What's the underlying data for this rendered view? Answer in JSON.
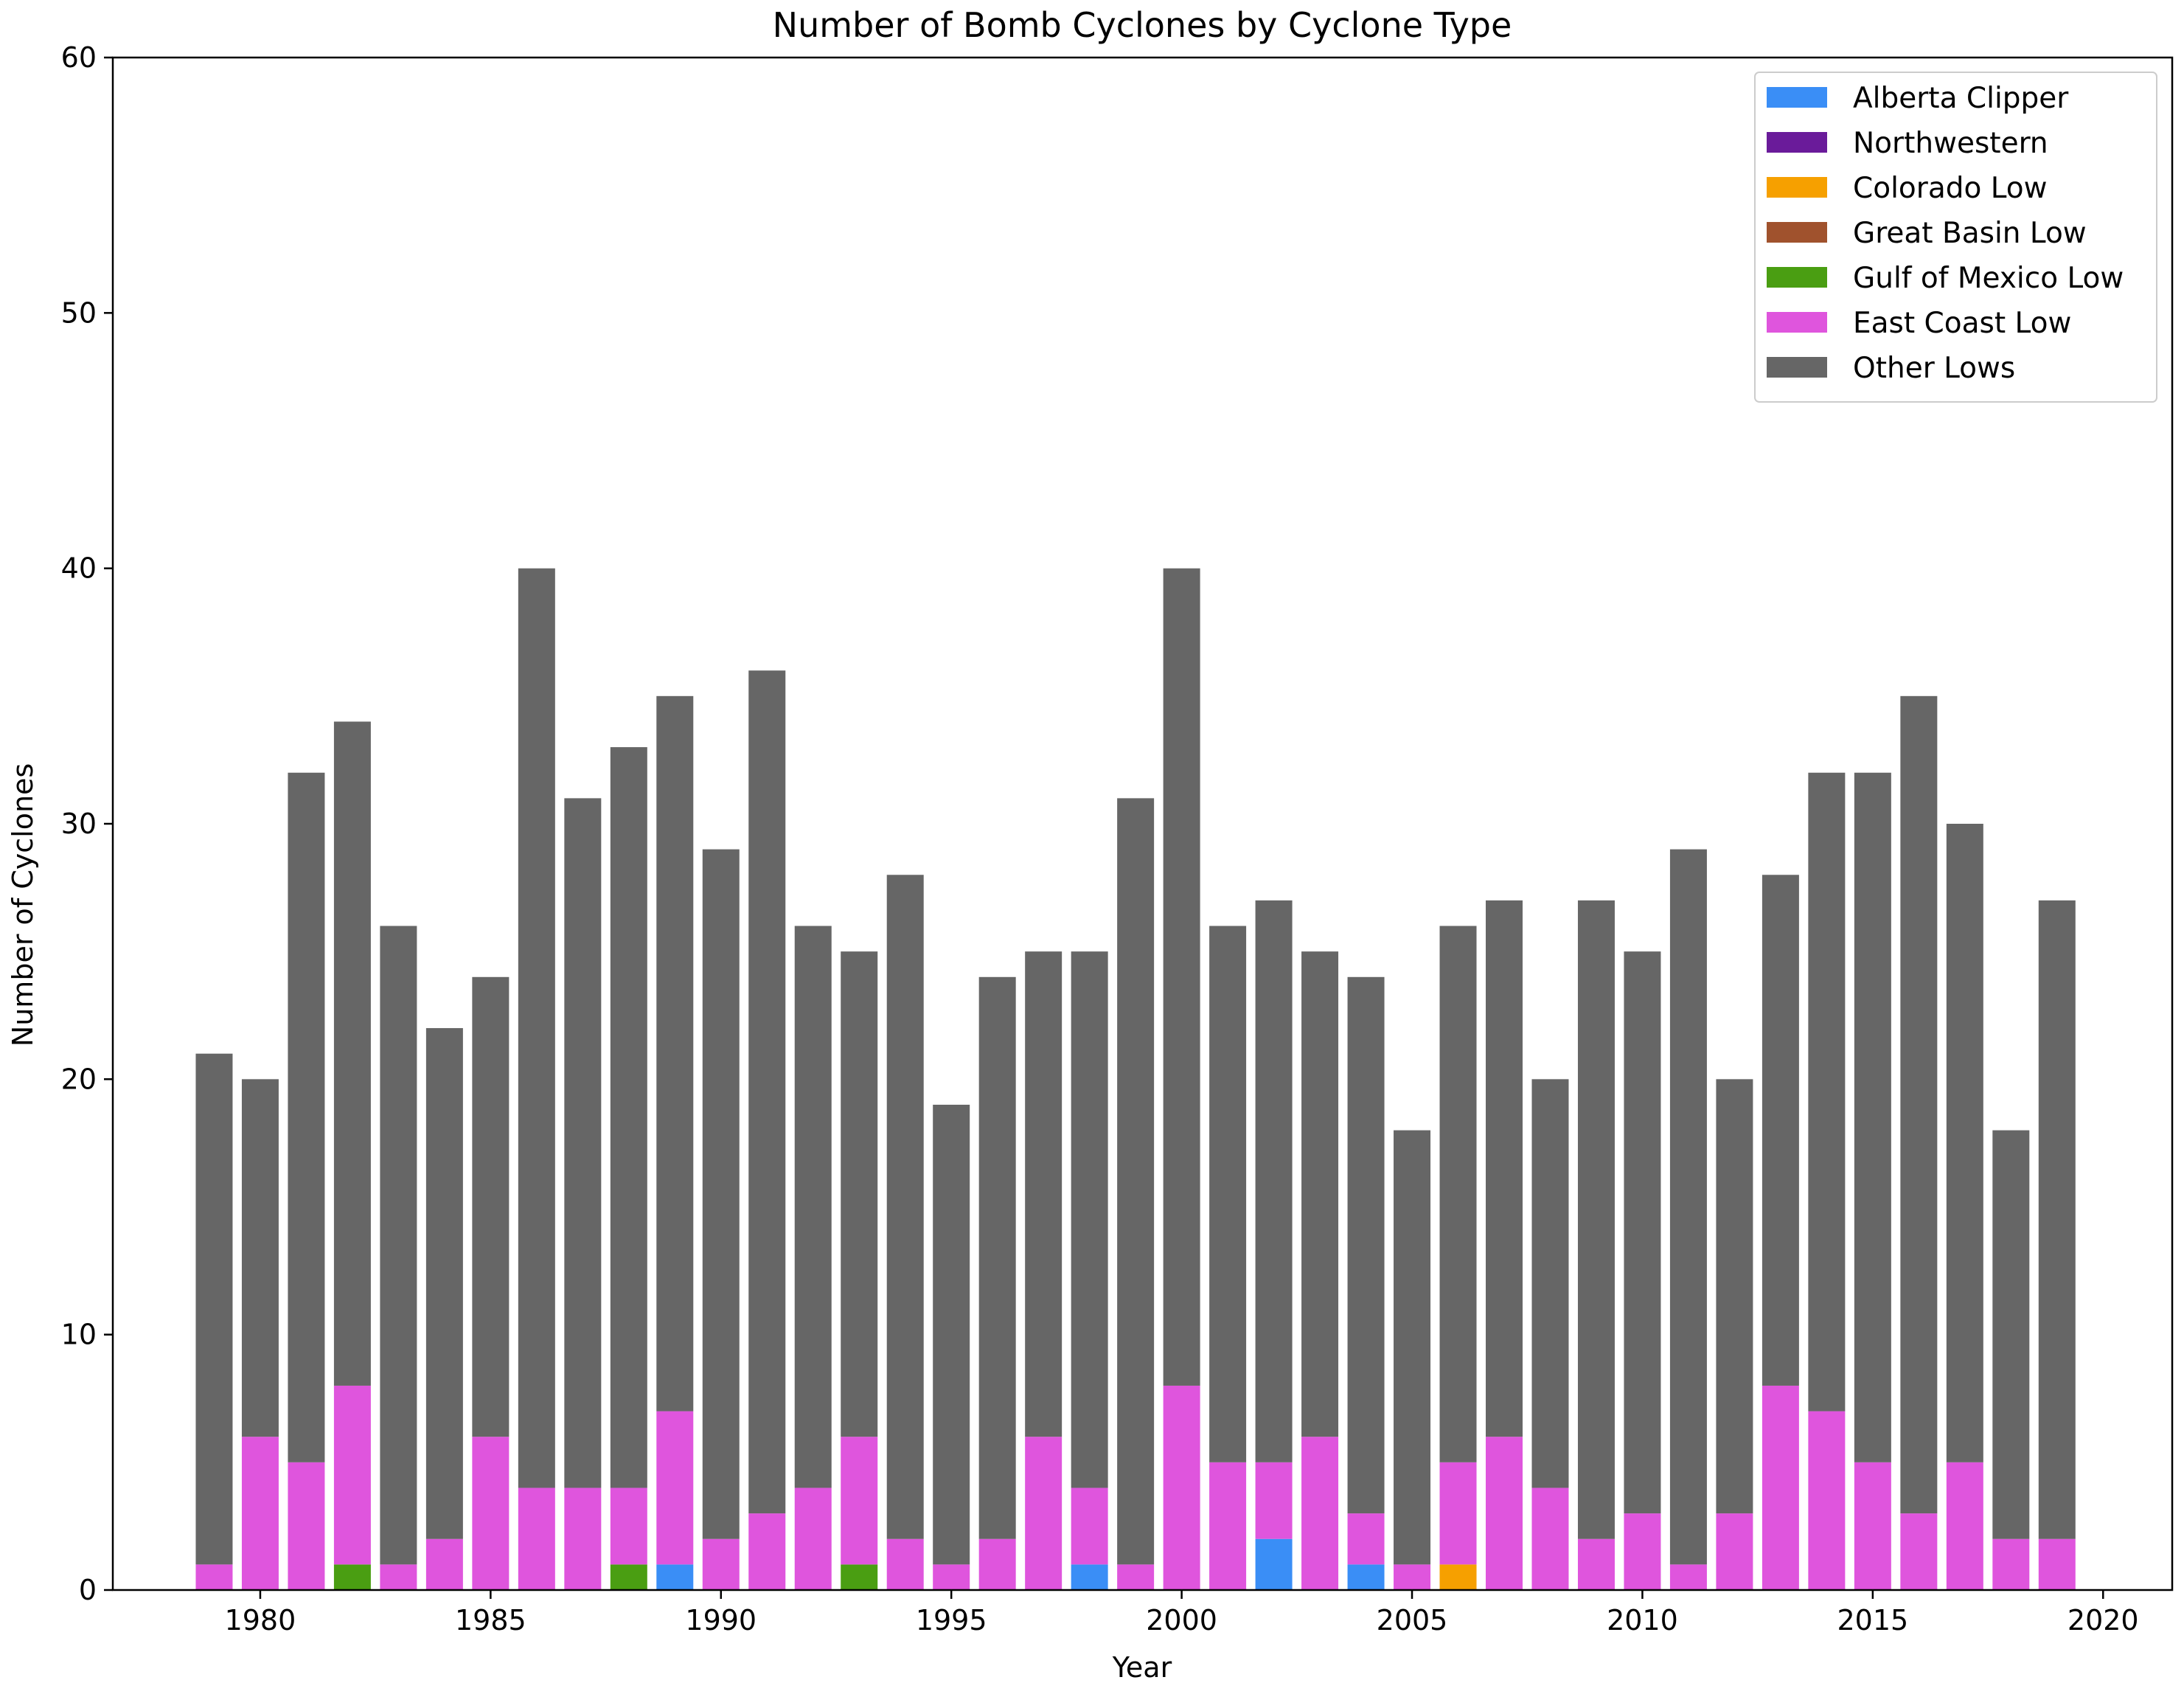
{
  "chart_data": {
    "type": "bar",
    "stacked": true,
    "title": "Number of Bomb Cyclones by Cyclone Type",
    "xlabel": "Year",
    "ylabel": "Number of Cyclones",
    "xlim": [
      1976.8,
      2021.5
    ],
    "ylim": [
      0,
      60
    ],
    "xticks": [
      1980,
      1985,
      1990,
      1995,
      2000,
      2005,
      2010,
      2015,
      2020
    ],
    "yticks": [
      0,
      10,
      20,
      30,
      40,
      50,
      60
    ],
    "grid": false,
    "legend_position": "top-right",
    "x": [
      1979,
      1980,
      1981,
      1982,
      1983,
      1984,
      1985,
      1986,
      1987,
      1988,
      1989,
      1990,
      1991,
      1992,
      1993,
      1994,
      1995,
      1996,
      1997,
      1998,
      1999,
      2000,
      2001,
      2002,
      2003,
      2004,
      2005,
      2006,
      2007,
      2008,
      2009,
      2010,
      2011,
      2012,
      2013,
      2014,
      2015,
      2016,
      2017,
      2018,
      2019
    ],
    "series": [
      {
        "name": "Alberta Clipper",
        "color": "#3a8ef6",
        "values": [
          0,
          0,
          0,
          0,
          0,
          0,
          0,
          0,
          0,
          0,
          1,
          0,
          0,
          0,
          0,
          0,
          0,
          0,
          0,
          1,
          0,
          0,
          0,
          2,
          0,
          1,
          0,
          0,
          0,
          0,
          0,
          0,
          0,
          0,
          0,
          0,
          0,
          0,
          0,
          0,
          0
        ]
      },
      {
        "name": "Northwestern",
        "color": "#6a1b9a",
        "values": [
          0,
          0,
          0,
          0,
          0,
          0,
          0,
          0,
          0,
          0,
          0,
          0,
          0,
          0,
          0,
          0,
          0,
          0,
          0,
          0,
          0,
          0,
          0,
          0,
          0,
          0,
          0,
          0,
          0,
          0,
          0,
          0,
          0,
          0,
          0,
          0,
          0,
          0,
          0,
          0,
          0
        ]
      },
      {
        "name": "Colorado Low",
        "color": "#f6a000",
        "values": [
          0,
          0,
          0,
          0,
          0,
          0,
          0,
          0,
          0,
          0,
          0,
          0,
          0,
          0,
          0,
          0,
          0,
          0,
          0,
          0,
          0,
          0,
          0,
          0,
          0,
          0,
          0,
          1,
          0,
          0,
          0,
          0,
          0,
          0,
          0,
          0,
          0,
          0,
          0,
          0,
          0
        ]
      },
      {
        "name": "Great Basin Low",
        "color": "#a0522d",
        "values": [
          0,
          0,
          0,
          0,
          0,
          0,
          0,
          0,
          0,
          0,
          0,
          0,
          0,
          0,
          0,
          0,
          0,
          0,
          0,
          0,
          0,
          0,
          0,
          0,
          0,
          0,
          0,
          0,
          0,
          0,
          0,
          0,
          0,
          0,
          0,
          0,
          0,
          0,
          0,
          0,
          0
        ]
      },
      {
        "name": "Gulf of Mexico Low",
        "color": "#4a9e12",
        "values": [
          0,
          0,
          0,
          1,
          0,
          0,
          0,
          0,
          0,
          1,
          0,
          0,
          0,
          0,
          1,
          0,
          0,
          0,
          0,
          0,
          0,
          0,
          0,
          0,
          0,
          0,
          0,
          0,
          0,
          0,
          0,
          0,
          0,
          0,
          0,
          0,
          0,
          0,
          0,
          0,
          0
        ]
      },
      {
        "name": "East Coast Low",
        "color": "#df55dd",
        "values": [
          1,
          6,
          5,
          7,
          1,
          2,
          6,
          4,
          4,
          3,
          6,
          2,
          3,
          4,
          5,
          2,
          1,
          2,
          6,
          3,
          1,
          8,
          5,
          3,
          6,
          2,
          1,
          4,
          6,
          4,
          2,
          3,
          1,
          3,
          8,
          7,
          5,
          3,
          5,
          2,
          2
        ]
      },
      {
        "name": "Other Lows",
        "color": "#666666",
        "values": [
          20,
          14,
          27,
          26,
          25,
          20,
          18,
          36,
          27,
          29,
          28,
          27,
          33,
          22,
          19,
          26,
          18,
          22,
          19,
          21,
          30,
          32,
          21,
          22,
          19,
          21,
          17,
          21,
          21,
          16,
          25,
          22,
          28,
          17,
          20,
          25,
          27,
          32,
          25,
          16,
          25
        ]
      }
    ]
  }
}
